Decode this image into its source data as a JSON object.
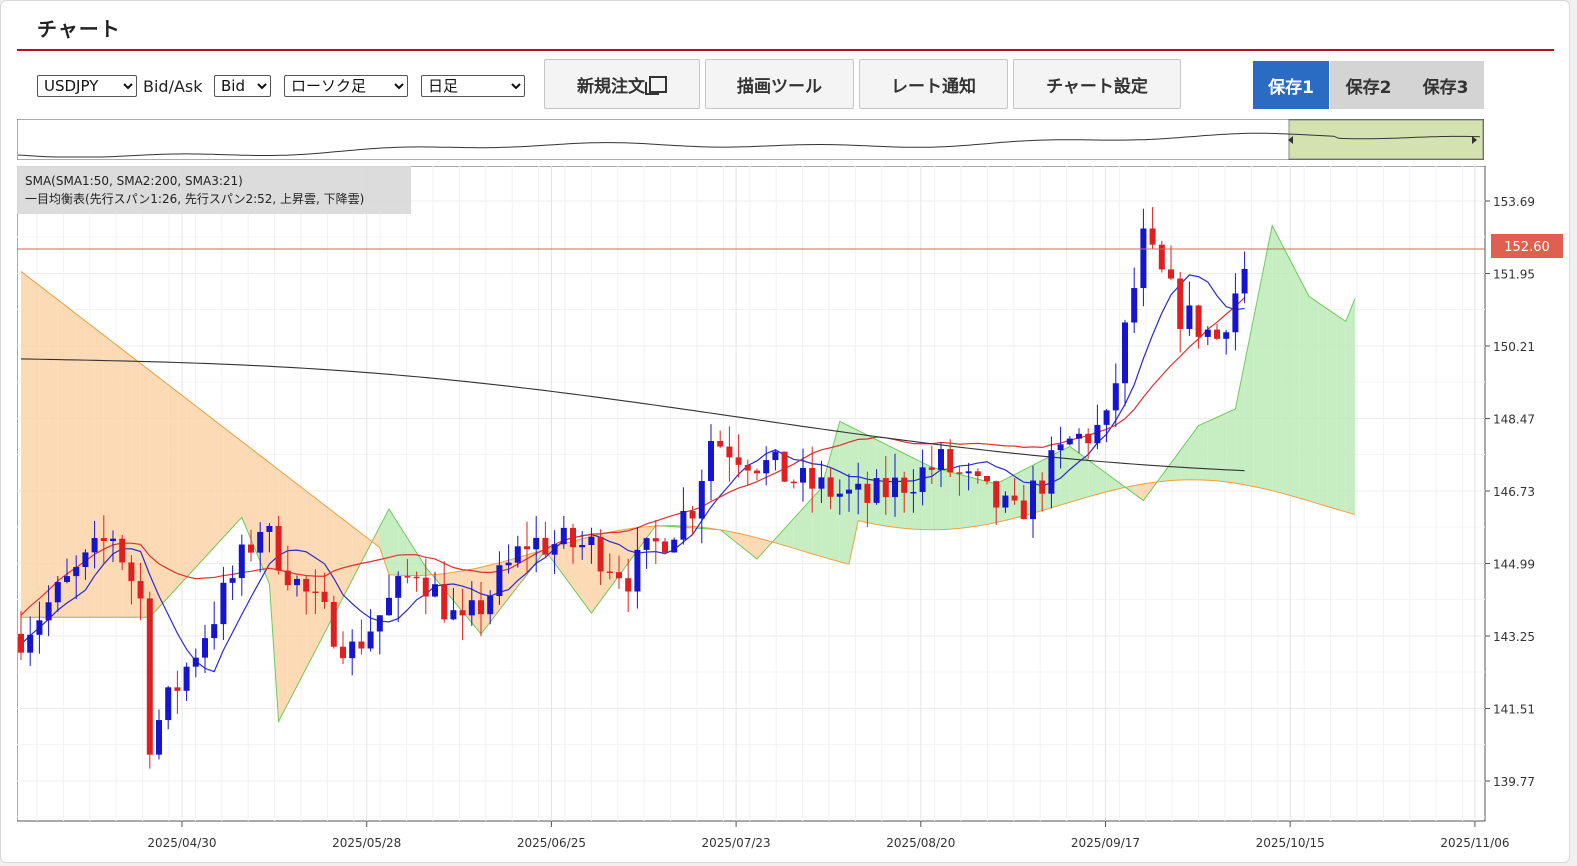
{
  "header": {
    "title": "チャート"
  },
  "toolbar": {
    "symbol": "USDJPY",
    "bidask_label": "Bid/Ask",
    "bidask_value": "Bid",
    "chart_type": "ローソク足",
    "timeframe": "日足",
    "new_order": "新規注文",
    "draw_tool": "描画ツール",
    "rate_alert": "レート通知",
    "chart_settings": "チャート設定",
    "save1": "保存1",
    "save2": "保存2",
    "save3": "保存3"
  },
  "legend": {
    "line1": "SMA(SMA1:50, SMA2:200, SMA3:21)",
    "line2": "一目均衡表(先行スパン1:26, 先行スパン2:52, 上昇雲, 下降雲)"
  },
  "colors": {
    "up": "#1515d0",
    "down": "#e02020",
    "current": "#e06050"
  },
  "chart_data": {
    "type": "candlestick",
    "current_price": "152.60",
    "y_ticks": [
      "153.69",
      "151.95",
      "150.21",
      "148.47",
      "146.73",
      "144.99",
      "143.25",
      "141.51",
      "139.77"
    ],
    "x_ticks": [
      "2025/04/30",
      "2025/05/28",
      "2025/06/25",
      "2025/07/23",
      "2025/08/20",
      "2025/09/17",
      "2025/10/15",
      "2025/11/06"
    ],
    "series": [
      {
        "name": "SMA1:50"
      },
      {
        "name": "SMA2:200"
      },
      {
        "name": "SMA3:21"
      }
    ]
  }
}
